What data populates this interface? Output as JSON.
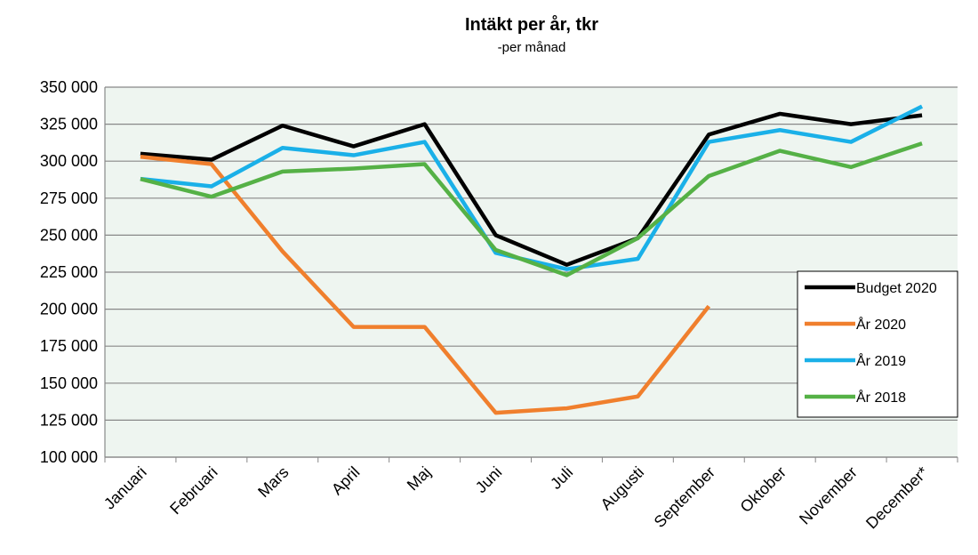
{
  "chart_data": {
    "type": "line",
    "title": "Intäkt per år, tkr",
    "subtitle": "-per månad",
    "categories": [
      "Januari",
      "Februari",
      "Mars",
      "April",
      "Maj",
      "Juni",
      "Juli",
      "Augusti",
      "September",
      "Oktober",
      "November",
      "December*"
    ],
    "series": [
      {
        "name": "Budget 2020",
        "color": "#000000",
        "values": [
          305000,
          301000,
          324000,
          310000,
          325000,
          250000,
          230000,
          248000,
          318000,
          332000,
          325000,
          331000
        ]
      },
      {
        "name": "År 2020",
        "color": "#f07f2d",
        "values": [
          303000,
          298000,
          239000,
          188000,
          188000,
          130000,
          133000,
          141000,
          202000,
          null,
          null,
          null
        ]
      },
      {
        "name": "År 2019",
        "color": "#1ab0e8",
        "values": [
          288000,
          283000,
          309000,
          304000,
          313000,
          238000,
          227000,
          234000,
          313000,
          321000,
          313000,
          337000
        ]
      },
      {
        "name": "År 2018",
        "color": "#55b146",
        "values": [
          288000,
          276000,
          293000,
          295000,
          298000,
          240000,
          223000,
          248000,
          290000,
          307000,
          296000,
          312000
        ]
      }
    ],
    "ylim": [
      100000,
      350000
    ],
    "yticks": [
      {
        "value": 100000,
        "label": "100 000"
      },
      {
        "value": 125000,
        "label": "125 000"
      },
      {
        "value": 150000,
        "label": "150 000"
      },
      {
        "value": 175000,
        "label": "175 000"
      },
      {
        "value": 200000,
        "label": "200 000"
      },
      {
        "value": 225000,
        "label": "225 000"
      },
      {
        "value": 250000,
        "label": "250 000"
      },
      {
        "value": 275000,
        "label": "275 000"
      },
      {
        "value": 300000,
        "label": "300 000"
      },
      {
        "value": 325000,
        "label": "325 000"
      },
      {
        "value": 350000,
        "label": "350 000"
      }
    ],
    "grid": true
  }
}
